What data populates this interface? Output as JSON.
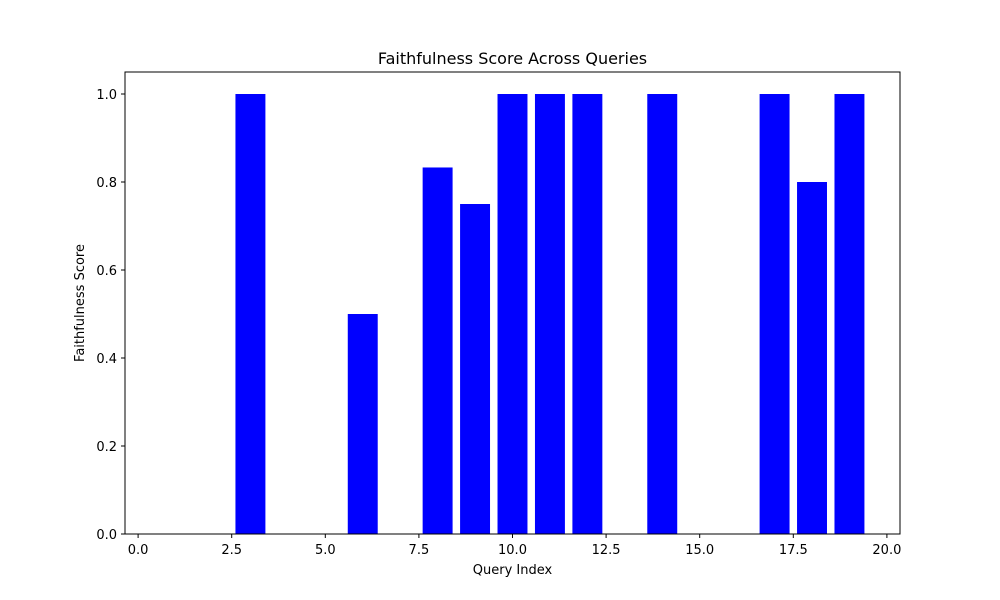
{
  "chart_data": {
    "type": "bar",
    "title": "Faithfulness Score Across Queries",
    "xlabel": "Query Index",
    "ylabel": "Faithfulness Score",
    "x": [
      0,
      1,
      2,
      3,
      4,
      5,
      6,
      7,
      8,
      9,
      10,
      11,
      12,
      13,
      14,
      15,
      16,
      17,
      18,
      19
    ],
    "values": [
      0,
      0,
      0,
      1.0,
      0,
      0,
      0.5,
      0,
      0.833,
      0.75,
      1.0,
      1.0,
      1.0,
      0,
      1.0,
      0,
      0,
      1.0,
      0.8,
      1.0
    ],
    "bar_color": "#0000ff",
    "xlim": [
      -0.35,
      20.35
    ],
    "ylim": [
      0,
      1.05
    ],
    "xticks": [
      0.0,
      2.5,
      5.0,
      7.5,
      10.0,
      12.5,
      15.0,
      17.5,
      20.0
    ],
    "xtick_labels": [
      "0.0",
      "2.5",
      "5.0",
      "7.5",
      "10.0",
      "12.5",
      "15.0",
      "17.5",
      "20.0"
    ],
    "yticks": [
      0.0,
      0.2,
      0.4,
      0.6,
      0.8,
      1.0
    ],
    "ytick_labels": [
      "0.0",
      "0.2",
      "0.4",
      "0.6",
      "0.8",
      "1.0"
    ],
    "grid": false,
    "legend": false
  }
}
